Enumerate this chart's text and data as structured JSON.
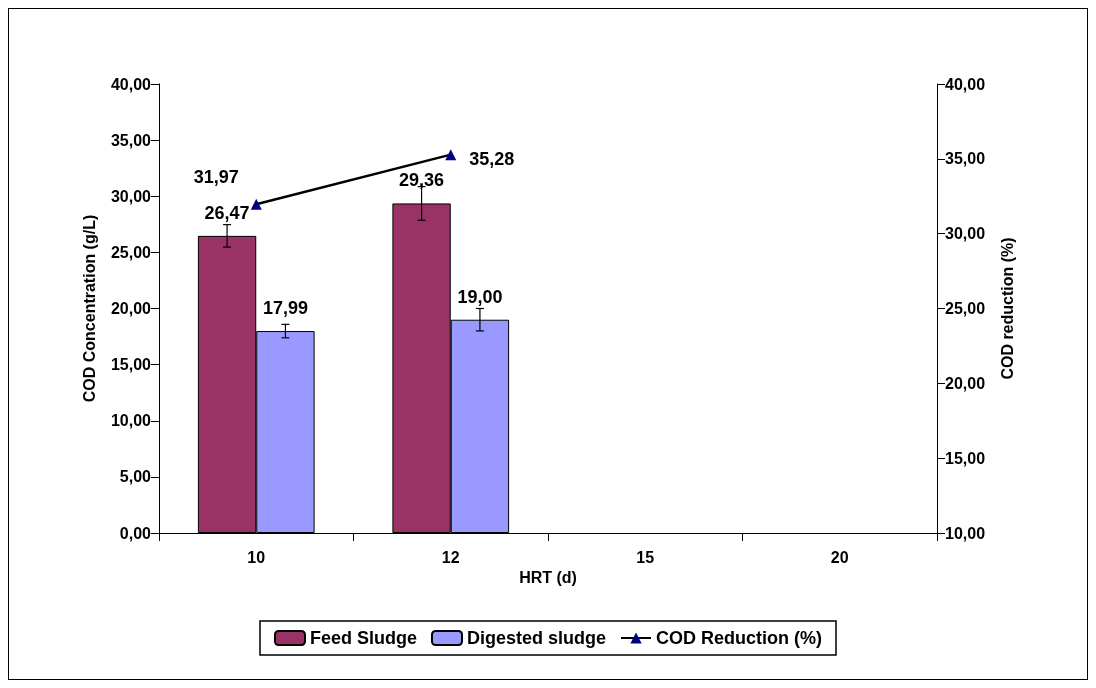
{
  "chart_data": {
    "type": "bar",
    "categories": [
      "10",
      "12",
      "15",
      "20"
    ],
    "xlabel": "HRT (d)",
    "ylabel": "COD Concentration (g/L)",
    "y2label": "COD reduction (%)",
    "series": [
      {
        "name": "Feed Sludge",
        "color": "#993366",
        "values": [
          26.47,
          29.36,
          null,
          null
        ],
        "errors": [
          1.0,
          1.5,
          null,
          null
        ],
        "value_labels": [
          "26,47",
          "29,36",
          null,
          null
        ]
      },
      {
        "name": "Digested sludge",
        "color": "#9999ff",
        "values": [
          17.99,
          19.0,
          null,
          null
        ],
        "errors": [
          0.6,
          1.0,
          null,
          null
        ],
        "value_labels": [
          "17,99",
          "19,00",
          null,
          null
        ]
      },
      {
        "name": "COD Reduction (%)",
        "type": "line",
        "axis": "y2",
        "color": "#000080",
        "values": [
          31.97,
          35.28,
          null,
          null
        ],
        "value_labels": [
          "31,97",
          "35,28",
          null,
          null
        ]
      }
    ],
    "ylim": [
      0,
      40
    ],
    "yticks": [
      {
        "value": 0,
        "label": "0,00"
      },
      {
        "value": 5,
        "label": "5,00"
      },
      {
        "value": 10,
        "label": "10,00"
      },
      {
        "value": 15,
        "label": "15,00"
      },
      {
        "value": 20,
        "label": "20,00"
      },
      {
        "value": 25,
        "label": "25,00"
      },
      {
        "value": 30,
        "label": "30,00"
      },
      {
        "value": 35,
        "label": "35,00"
      },
      {
        "value": 40,
        "label": "40,00"
      }
    ],
    "y2lim": [
      10,
      40
    ],
    "y2ticks": [
      {
        "value": 10,
        "label": "10,00"
      },
      {
        "value": 15,
        "label": "15,00"
      },
      {
        "value": 20,
        "label": "20,00"
      },
      {
        "value": 25,
        "label": "25,00"
      },
      {
        "value": 30,
        "label": "30,00"
      },
      {
        "value": 35,
        "label": "35,00"
      },
      {
        "value": 40,
        "label": "40,00"
      }
    ],
    "legend": "bottom",
    "grid": false,
    "marker": "triangle",
    "line_style": "solid"
  }
}
